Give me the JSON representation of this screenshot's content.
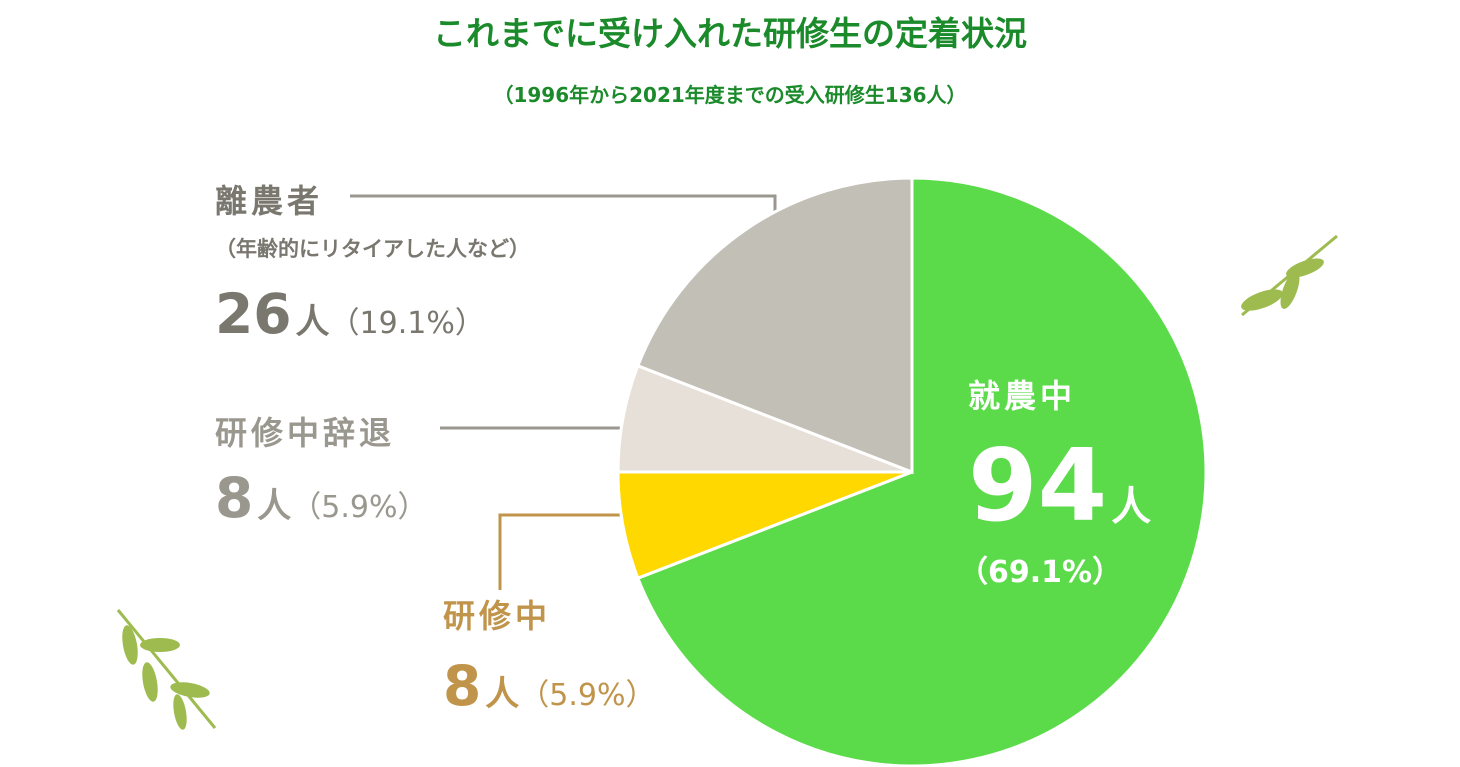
{
  "chart_data": {
    "type": "pie",
    "title": "これまでに受け入れた研修生の定着状況",
    "subtitle": "（1996年から2021年度までの受入研修生136人）",
    "categories": [
      "就農中",
      "研修中",
      "研修中辞退",
      "離農者"
    ],
    "values": [
      94,
      8,
      8,
      26
    ],
    "unit": "人",
    "percent_labels": [
      "（69.1%）",
      "（5.9%）",
      "（5.9%）",
      "（19.1%）"
    ],
    "annotation": "（年齢的にリタイアした人など）",
    "colors": [
      "#5cdb4a",
      "#ffd800",
      "#e6e0d8",
      "#c2bfb6"
    ],
    "label_colors": [
      "#ffffff",
      "#c0944a",
      "#9a978f",
      "#7a776f"
    ],
    "title_color": "#1a8a2a"
  }
}
